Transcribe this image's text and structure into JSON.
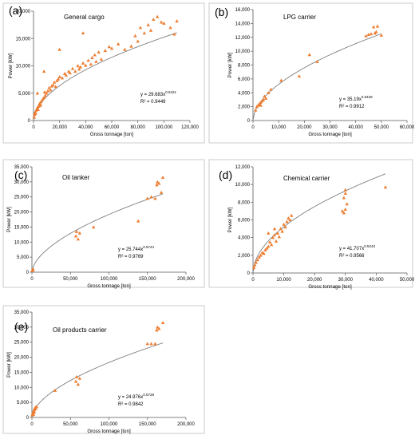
{
  "colors": {
    "marker": "#ed7d31",
    "trendline": "#7f7f7f",
    "axis": "#595959",
    "frame": "#bfbfbf",
    "text": "#000000"
  },
  "chart_data": [
    {
      "id": "a",
      "type": "scatter",
      "panel_label": "(a)",
      "title": "General cargo",
      "xlabel": "Gross tonnage [ton]",
      "ylabel": "Power [kW]",
      "xlim": [
        0,
        120000
      ],
      "ylim": [
        0,
        20000
      ],
      "xticks": [
        "0",
        "20,000",
        "40,000",
        "60,000",
        "80,000",
        "100,000",
        "120,000"
      ],
      "yticks": [
        "0",
        "5,000",
        "10,000",
        "15,000",
        "20,000"
      ],
      "equation": "y = 29.683x",
      "exponent": "0.5421",
      "r2": "R² = 0.9449",
      "fit": {
        "a": 29.683,
        "b": 0.5421,
        "xmax": 110000
      },
      "points": [
        [
          500,
          600
        ],
        [
          800,
          1100
        ],
        [
          1200,
          1500
        ],
        [
          1500,
          1300
        ],
        [
          2000,
          1800
        ],
        [
          2500,
          2100
        ],
        [
          3000,
          2400
        ],
        [
          3500,
          2000
        ],
        [
          4000,
          2600
        ],
        [
          4500,
          3000
        ],
        [
          5000,
          3200
        ],
        [
          5500,
          2800
        ],
        [
          6000,
          3500
        ],
        [
          7000,
          3900
        ],
        [
          8000,
          4200
        ],
        [
          8500,
          5200
        ],
        [
          9000,
          4600
        ],
        [
          10000,
          5000
        ],
        [
          11000,
          5400
        ],
        [
          12000,
          6000
        ],
        [
          13000,
          5600
        ],
        [
          14000,
          6300
        ],
        [
          15000,
          6500
        ],
        [
          16000,
          7000
        ],
        [
          17000,
          6200
        ],
        [
          18000,
          7300
        ],
        [
          19000,
          7600
        ],
        [
          20000,
          8000
        ],
        [
          22000,
          7800
        ],
        [
          24000,
          8600
        ],
        [
          25000,
          8300
        ],
        [
          27000,
          9000
        ],
        [
          28000,
          8700
        ],
        [
          30000,
          9500
        ],
        [
          32000,
          9000
        ],
        [
          34000,
          10000
        ],
        [
          35000,
          9400
        ],
        [
          36000,
          9800
        ],
        [
          38000,
          10500
        ],
        [
          40000,
          10100
        ],
        [
          42000,
          11000
        ],
        [
          44000,
          10300
        ],
        [
          45000,
          11500
        ],
        [
          47000,
          12000
        ],
        [
          48000,
          10800
        ],
        [
          50000,
          12500
        ],
        [
          52000,
          11200
        ],
        [
          55000,
          12800
        ],
        [
          58000,
          13500
        ],
        [
          60000,
          13200
        ],
        [
          65000,
          14000
        ],
        [
          70000,
          13000
        ],
        [
          75000,
          13600
        ],
        [
          78000,
          15500
        ],
        [
          80000,
          14500
        ],
        [
          82000,
          17000
        ],
        [
          85000,
          16000
        ],
        [
          88000,
          17500
        ],
        [
          90000,
          16500
        ],
        [
          92000,
          18500
        ],
        [
          95000,
          19000
        ],
        [
          98000,
          18000
        ],
        [
          100000,
          17800
        ],
        [
          105000,
          17000
        ],
        [
          108000,
          15800
        ],
        [
          110000,
          18200
        ],
        [
          20000,
          13000
        ],
        [
          38000,
          16000
        ],
        [
          8000,
          9000
        ],
        [
          3000,
          5000
        ]
      ]
    },
    {
      "id": "b",
      "type": "scatter",
      "panel_label": "(b)",
      "title": "LPG carrier",
      "xlabel": "Gross tonnage [ton]",
      "ylabel": "Power [kW]",
      "xlim": [
        0,
        60000
      ],
      "ylim": [
        0,
        16000
      ],
      "xticks": [
        "0",
        "10,000",
        "20,000",
        "30,000",
        "40,000",
        "50,000",
        "60,000"
      ],
      "yticks": [
        "0",
        "2,000",
        "4,000",
        "6,000",
        "8,000",
        "10,000",
        "12,000",
        "14,000",
        "16,000"
      ],
      "equation": "y = 35.19x",
      "exponent": "0.5429",
      "r2": "R² = 0.9912",
      "fit": {
        "a": 35.19,
        "b": 0.5429,
        "xmax": 50000
      },
      "points": [
        [
          1000,
          1500
        ],
        [
          1500,
          2000
        ],
        [
          2000,
          2200
        ],
        [
          2500,
          2400
        ],
        [
          3000,
          2600
        ],
        [
          3500,
          2800
        ],
        [
          4000,
          3000
        ],
        [
          3000,
          2200
        ],
        [
          4500,
          3500
        ],
        [
          5000,
          3200
        ],
        [
          6000,
          4000
        ],
        [
          7000,
          4500
        ],
        [
          11000,
          5800
        ],
        [
          18000,
          6400
        ],
        [
          22000,
          9500
        ],
        [
          25000,
          8500
        ],
        [
          44000,
          12200
        ],
        [
          46000,
          12500
        ],
        [
          47000,
          13500
        ],
        [
          48000,
          12800
        ],
        [
          48500,
          13600
        ],
        [
          50000,
          12300
        ],
        [
          45000,
          12400
        ],
        [
          47500,
          12600
        ]
      ]
    },
    {
      "id": "c",
      "type": "scatter",
      "panel_label": "(c)",
      "title": "Oil tanker",
      "xlabel": "Gross tonnage [ton]",
      "ylabel": "Power [kW]",
      "xlim": [
        0,
        200000
      ],
      "ylim": [
        0,
        35000
      ],
      "xticks": [
        "0",
        "50,000",
        "100,000",
        "150,000",
        "200,000"
      ],
      "yticks": [
        "0",
        "5,000",
        "10,000",
        "15,000",
        "20,000",
        "25,000",
        "30,000",
        "35,000"
      ],
      "equation": "y = 25.744x",
      "exponent": "0.5744",
      "r2": "R² = 0.9769",
      "fit": {
        "a": 25.744,
        "b": 0.5744,
        "xmax": 170000
      },
      "points": [
        [
          500,
          500
        ],
        [
          1000,
          800
        ],
        [
          1500,
          1000
        ],
        [
          57000,
          12000
        ],
        [
          58000,
          13500
        ],
        [
          60000,
          11000
        ],
        [
          62000,
          13000
        ],
        [
          80000,
          15000
        ],
        [
          138000,
          17000
        ],
        [
          150000,
          24500
        ],
        [
          155000,
          25000
        ],
        [
          160000,
          24500
        ],
        [
          162000,
          29000
        ],
        [
          163000,
          30000
        ],
        [
          165000,
          29500
        ],
        [
          170000,
          31500
        ],
        [
          168000,
          26500
        ]
      ]
    },
    {
      "id": "d",
      "type": "scatter",
      "panel_label": "(d)",
      "title": "Chemical carrier",
      "xlabel": "Gross tonnage [ton]",
      "ylabel": "Power [kW]",
      "xlim": [
        0,
        50000
      ],
      "ylim": [
        0,
        12000
      ],
      "xticks": [
        "0",
        "10,000",
        "20,000",
        "30,000",
        "40,000",
        "50,000"
      ],
      "yticks": [
        "0",
        "2,000",
        "4,000",
        "6,000",
        "8,000",
        "10,000",
        "12,000"
      ],
      "equation": "y = 41.707x",
      "exponent": "0.5243",
      "r2": "R² = 0.9566",
      "fit": {
        "a": 41.707,
        "b": 0.5243,
        "xmax": 43000
      },
      "points": [
        [
          300,
          600
        ],
        [
          600,
          900
        ],
        [
          1000,
          1200
        ],
        [
          1500,
          1500
        ],
        [
          2000,
          1800
        ],
        [
          2500,
          2000
        ],
        [
          3000,
          2300
        ],
        [
          3500,
          2200
        ],
        [
          4000,
          2600
        ],
        [
          4500,
          2800
        ],
        [
          5000,
          3000
        ],
        [
          5500,
          3500
        ],
        [
          6000,
          3200
        ],
        [
          6500,
          4000
        ],
        [
          7000,
          4300
        ],
        [
          7500,
          3600
        ],
        [
          8000,
          4500
        ],
        [
          8500,
          4100
        ],
        [
          9000,
          5000
        ],
        [
          9500,
          4700
        ],
        [
          10000,
          5500
        ],
        [
          10500,
          5200
        ],
        [
          11000,
          5800
        ],
        [
          11500,
          6200
        ],
        [
          12000,
          6000
        ],
        [
          12500,
          6500
        ],
        [
          5000,
          4500
        ],
        [
          7000,
          5000
        ],
        [
          29000,
          7000
        ],
        [
          29500,
          8500
        ],
        [
          30000,
          9400
        ],
        [
          30500,
          7800
        ],
        [
          30000,
          7200
        ],
        [
          29500,
          6800
        ],
        [
          30000,
          9000
        ],
        [
          43000,
          9700
        ]
      ]
    },
    {
      "id": "e",
      "type": "scatter",
      "panel_label": "(e)",
      "title": "Oil products carrier",
      "xlabel": "Gross tonnage [ton]",
      "ylabel": "Power [kW]",
      "xlim": [
        0,
        200000
      ],
      "ylim": [
        0,
        35000
      ],
      "xticks": [
        "0",
        "50,000",
        "100,000",
        "150,000",
        "200,000"
      ],
      "yticks": [
        "0",
        "5,000",
        "10,000",
        "15,000",
        "20,000",
        "25,000",
        "30,000",
        "35,000"
      ],
      "equation": "y = 24.976x",
      "exponent": "0.5728",
      "r2": "R² = 0.9842",
      "fit": {
        "a": 24.976,
        "b": 0.5728,
        "xmax": 170000
      },
      "points": [
        [
          500,
          800
        ],
        [
          1000,
          1200
        ],
        [
          1500,
          1500
        ],
        [
          2000,
          2000
        ],
        [
          2500,
          2200
        ],
        [
          3000,
          2600
        ],
        [
          3500,
          3000
        ],
        [
          4000,
          2800
        ],
        [
          4500,
          3200
        ],
        [
          5000,
          3400
        ],
        [
          6000,
          3600
        ],
        [
          2000,
          1000
        ],
        [
          3000,
          1800
        ],
        [
          30000,
          9000
        ],
        [
          57000,
          12000
        ],
        [
          58000,
          13500
        ],
        [
          60000,
          11000
        ],
        [
          62000,
          13000
        ],
        [
          150000,
          24500
        ],
        [
          155000,
          24500
        ],
        [
          160000,
          24500
        ],
        [
          162000,
          29000
        ],
        [
          163000,
          30000
        ],
        [
          165000,
          29500
        ],
        [
          170000,
          31500
        ]
      ]
    }
  ]
}
